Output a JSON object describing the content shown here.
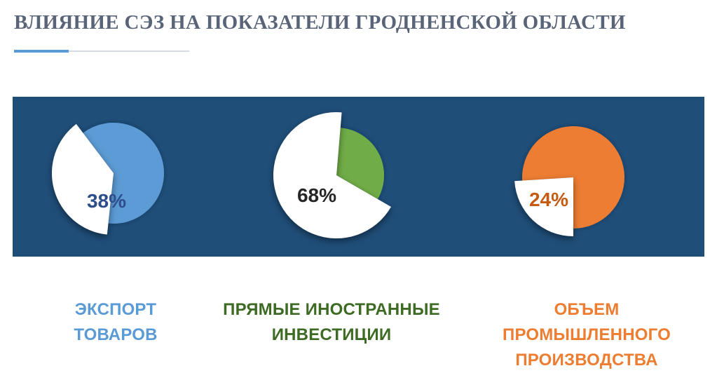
{
  "title": "ВЛИЯНИЕ СЭЗ НА ПОКАЗАТЕЛИ ГРОДНЕНСКОЙ ОБЛАСТИ",
  "chart_data": [
    {
      "type": "pie",
      "slices": [
        {
          "label": "ЭКСПОРТ ТОВАРОВ",
          "value": 38,
          "display": "38%"
        },
        {
          "label": "",
          "value": 62
        }
      ],
      "color": "#5b9bd5",
      "label_color": "#2e4d8c",
      "caption": [
        "ЭКСПОРТ",
        "ТОВАРОВ"
      ],
      "caption_color": "#5b9bd5"
    },
    {
      "type": "pie",
      "slices": [
        {
          "label": "ПРЯМЫЕ ИНОСТРАННЫЕ ИНВЕСТИЦИИ",
          "value": 68,
          "display": "68%"
        },
        {
          "label": "",
          "value": 32
        }
      ],
      "color": "#70ad47",
      "label_color": "#262626",
      "caption": [
        "ПРЯМЫЕ ИНОСТРАННЫЕ",
        "ИНВЕСТИЦИИ"
      ],
      "caption_color": "#3e6b23"
    },
    {
      "type": "pie",
      "slices": [
        {
          "label": "ОБЪЕМ ПРОМЫШЛЕННОГО ПРОИЗВОДСТВА",
          "value": 24,
          "display": "24%"
        },
        {
          "label": "",
          "value": 76
        }
      ],
      "color": "#ed7d31",
      "label_color": "#c55a11",
      "caption": [
        "ОБЪЕМ ПРОМЫШЛЕННОГО",
        "ПРОИЗВОДСТВА"
      ],
      "caption_color": "#ed7d31"
    }
  ]
}
